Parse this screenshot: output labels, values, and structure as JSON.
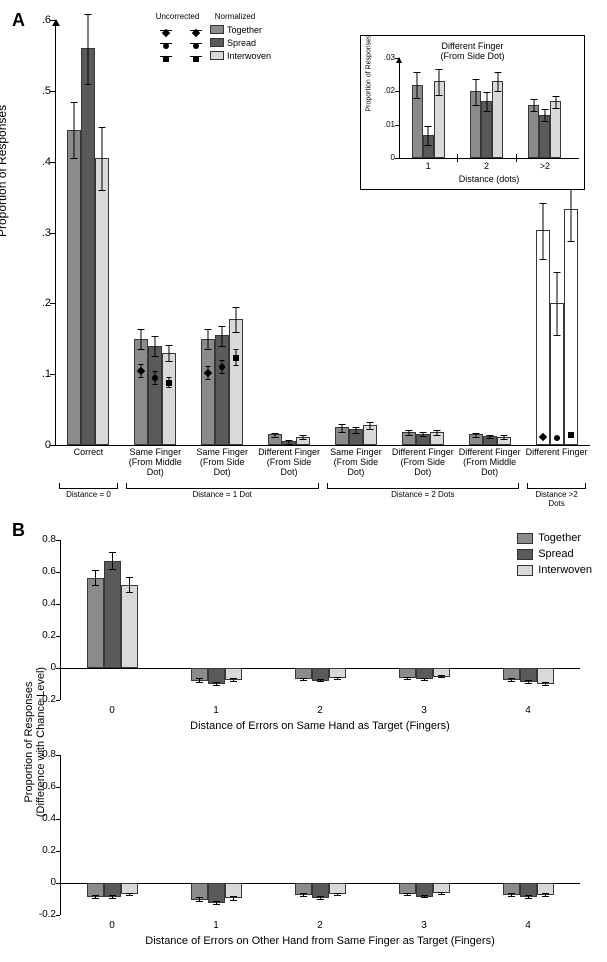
{
  "colors": {
    "together": "#8b8b8b",
    "spread": "#5a5a5a",
    "interwoven": "#d9d9d9",
    "outline": "#383838",
    "marker": "#000000",
    "bg": "#ffffff"
  },
  "panelA": {
    "label": "A",
    "ytitle": "Proportion of Responses",
    "ylim": [
      0,
      0.6
    ],
    "yticks": [
      0,
      0.1,
      0.2,
      0.3,
      0.4,
      0.5,
      0.6
    ],
    "ytick_labels": [
      "0",
      ".1",
      ".2",
      ".3",
      ".4",
      ".5",
      ".6"
    ],
    "legend": {
      "header1": "Uncorrected",
      "header2": "Normalized",
      "items": [
        "Together",
        "Spread",
        "Interwoven"
      ]
    },
    "groups": [
      {
        "label": "Correct",
        "uncorrected": [
          0.445,
          0.56,
          0.405
        ],
        "err": [
          0.04,
          0.05,
          0.045
        ],
        "norm": null
      },
      {
        "label": "Same Finger\n(From Middle Dot)",
        "uncorrected": [
          0.15,
          0.14,
          0.13
        ],
        "err": [
          0.015,
          0.015,
          0.012
        ],
        "norm": [
          0.105,
          0.095,
          0.088
        ],
        "nerr": [
          0.01,
          0.01,
          0.008
        ]
      },
      {
        "label": "Same Finger\n(From Side Dot)",
        "uncorrected": [
          0.15,
          0.155,
          0.178
        ],
        "err": [
          0.015,
          0.015,
          0.018
        ],
        "norm": [
          0.102,
          0.11,
          0.123
        ],
        "nerr": [
          0.01,
          0.01,
          0.012
        ]
      },
      {
        "label": "Different Finger\n(From Side Dot)",
        "uncorrected": [
          0.015,
          0.005,
          0.012
        ],
        "err": [
          0.004,
          0.003,
          0.004
        ],
        "norm": null
      },
      {
        "label": "Same Finger\n(From Side Dot)",
        "uncorrected": [
          0.025,
          0.022,
          0.028
        ],
        "err": [
          0.006,
          0.005,
          0.006
        ],
        "norm": null
      },
      {
        "label": "Different Finger\n(From Side Dot)",
        "uncorrected": [
          0.018,
          0.016,
          0.018
        ],
        "err": [
          0.004,
          0.004,
          0.004
        ],
        "norm": null
      },
      {
        "label": "Different Finger\n(From Middle Dot)",
        "uncorrected": [
          0.015,
          0.013,
          0.012
        ],
        "err": [
          0.004,
          0.003,
          0.003
        ],
        "norm": null
      },
      {
        "label": "Different Finger",
        "uncorrected": [
          0.303,
          0.201,
          0.333
        ],
        "err": [
          0.04,
          0.045,
          0.045
        ],
        "norm": [
          0.011,
          0.01,
          0.014
        ],
        "nerr": [
          0.003,
          0.003,
          0.003
        ],
        "hollow": true
      }
    ],
    "brackets": [
      {
        "label": "Distance = 0",
        "span": [
          0,
          0
        ]
      },
      {
        "label": "Distance = 1 Dot",
        "span": [
          1,
          3
        ]
      },
      {
        "label": "Distance = 2 Dots",
        "span": [
          4,
          6
        ]
      },
      {
        "label": "Distance >2 Dots",
        "span": [
          7,
          7
        ]
      }
    ],
    "inset": {
      "title": "Different Finger\n(From Side Dot)",
      "ytitle": "Proportion of Responses",
      "xtitle": "Distance (dots)",
      "ylim": [
        0,
        0.03
      ],
      "yticks": [
        0,
        0.01,
        0.02,
        0.03
      ],
      "ytick_labels": [
        "0",
        ".01",
        ".02",
        ".03"
      ],
      "xcats": [
        "1",
        "2",
        ">2"
      ],
      "data": [
        {
          "vals": [
            0.022,
            0.007,
            0.023
          ],
          "err": [
            0.004,
            0.003,
            0.004
          ]
        },
        {
          "vals": [
            0.02,
            0.017,
            0.023
          ],
          "err": [
            0.004,
            0.003,
            0.003
          ]
        },
        {
          "vals": [
            0.016,
            0.013,
            0.017
          ],
          "err": [
            0.002,
            0.002,
            0.002
          ]
        }
      ]
    }
  },
  "panelB": {
    "label": "B",
    "ytitle": "Proportion of Responses\n(Difference with Chance Level)",
    "ylim": [
      -0.2,
      0.8
    ],
    "yticks": [
      -0.2,
      0,
      0.2,
      0.4,
      0.6,
      0.8
    ],
    "xtitle1": "Distance of Errors on Same Hand as Target (Fingers)",
    "xtitle2": "Distance of Errors on Other Hand from Same Finger as Target (Fingers)",
    "xcats": [
      0,
      1,
      2,
      3,
      4
    ],
    "legend": [
      "Together",
      "Spread",
      "Interwoven"
    ],
    "sub1": [
      [
        0.56,
        0.67,
        0.52
      ],
      [
        -0.08,
        -0.1,
        -0.075
      ],
      [
        -0.07,
        -0.08,
        -0.065
      ],
      [
        -0.065,
        -0.07,
        -0.055
      ],
      [
        -0.075,
        -0.085,
        -0.1
      ]
    ],
    "sub1_err": [
      [
        0.05,
        0.055,
        0.05
      ],
      [
        0.015,
        0.015,
        0.015
      ],
      [
        0.01,
        0.01,
        0.01
      ],
      [
        0.01,
        0.01,
        0.01
      ],
      [
        0.012,
        0.012,
        0.015
      ]
    ],
    "sub2": [
      [
        -0.085,
        -0.09,
        -0.07
      ],
      [
        -0.105,
        -0.125,
        -0.095
      ],
      [
        -0.075,
        -0.095,
        -0.07
      ],
      [
        -0.07,
        -0.085,
        -0.065
      ],
      [
        -0.075,
        -0.09,
        -0.075
      ]
    ],
    "sub2_err": [
      [
        0.012,
        0.012,
        0.01
      ],
      [
        0.015,
        0.015,
        0.015
      ],
      [
        0.012,
        0.012,
        0.01
      ],
      [
        0.01,
        0.01,
        0.01
      ],
      [
        0.012,
        0.012,
        0.012
      ]
    ]
  }
}
